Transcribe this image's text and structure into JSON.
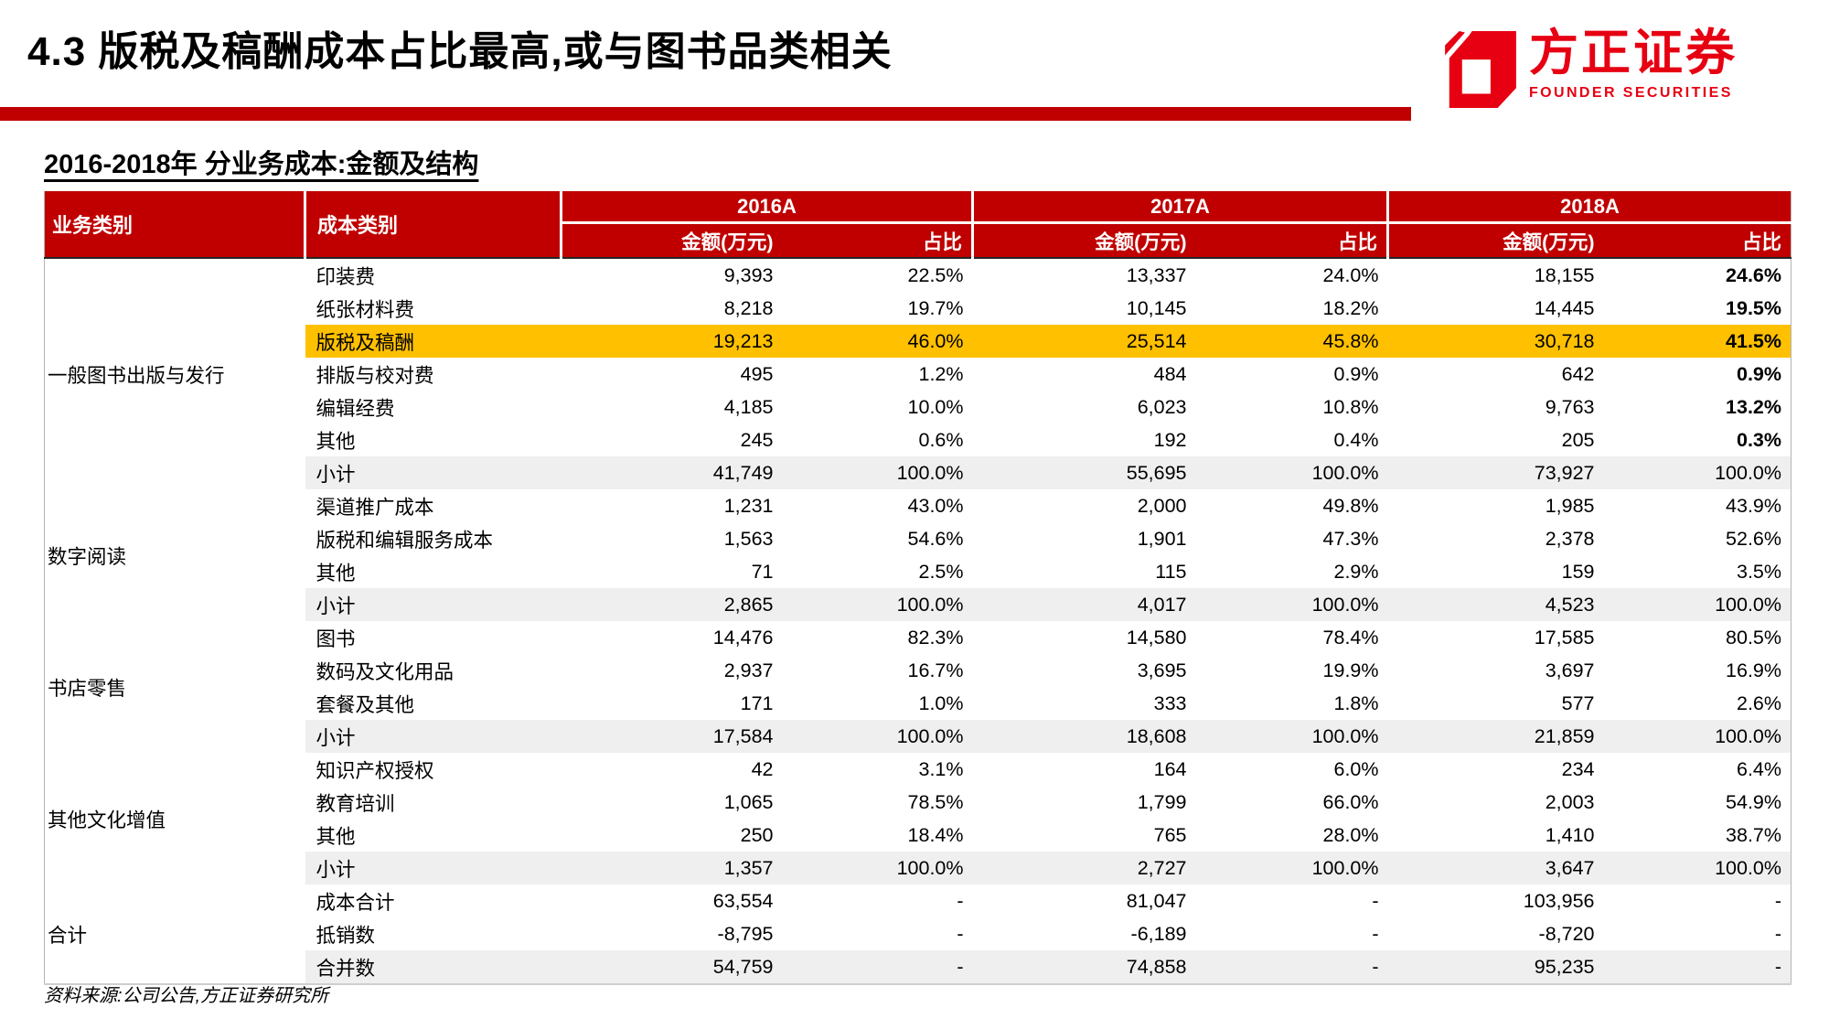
{
  "page": {
    "title": "4.3 版税及稿酬成本占比最高,或与图书品类相关",
    "subtitle": "2016-2018年 分业务成本:金额及结构",
    "source_note": "资料来源:公司公告,方正证券研究所"
  },
  "logo": {
    "name_cn": "方正证券",
    "name_en": "FOUNDER SECURITIES"
  },
  "colors": {
    "header_red": "#C00000",
    "divider_red": "#C00000",
    "logo_red": "#E60012",
    "highlight_yellow": "#FFC000",
    "subtotal_grey": "#EFEFEF"
  },
  "table": {
    "col_headers": {
      "business": "业务类别",
      "cost": "成本类别",
      "years": [
        "2016A",
        "2017A",
        "2018A"
      ],
      "amount": "金额(万元)",
      "share": "占比"
    },
    "rows": [
      {
        "group": "一般图书出版与发行",
        "span": 7,
        "cost": "印装费",
        "values": [
          "9,393",
          "22.5%",
          "13,337",
          "24.0%",
          "18,155",
          "24.6%"
        ],
        "hl": "",
        "bold_last": true
      },
      {
        "cost": "纸张材料费",
        "values": [
          "8,218",
          "19.7%",
          "10,145",
          "18.2%",
          "14,445",
          "19.5%"
        ],
        "hl": "",
        "bold_last": true
      },
      {
        "cost": "版税及稿酬",
        "values": [
          "19,213",
          "46.0%",
          "25,514",
          "45.8%",
          "30,718",
          "41.5%"
        ],
        "hl": "yellow",
        "bold_last": true
      },
      {
        "cost": "排版与校对费",
        "values": [
          "495",
          "1.2%",
          "484",
          "0.9%",
          "642",
          "0.9%"
        ],
        "hl": "",
        "bold_last": true
      },
      {
        "cost": "编辑经费",
        "values": [
          "4,185",
          "10.0%",
          "6,023",
          "10.8%",
          "9,763",
          "13.2%"
        ],
        "hl": "",
        "bold_last": true
      },
      {
        "cost": "其他",
        "values": [
          "245",
          "0.6%",
          "192",
          "0.4%",
          "205",
          "0.3%"
        ],
        "hl": "",
        "bold_last": true
      },
      {
        "cost": "小计",
        "values": [
          "41,749",
          "100.0%",
          "55,695",
          "100.0%",
          "73,927",
          "100.0%"
        ],
        "hl": "grey",
        "bold_last": false
      },
      {
        "group": "数字阅读",
        "span": 4,
        "cost": "渠道推广成本",
        "values": [
          "1,231",
          "43.0%",
          "2,000",
          "49.8%",
          "1,985",
          "43.9%"
        ],
        "hl": "",
        "bold_last": false
      },
      {
        "cost": "版税和编辑服务成本",
        "values": [
          "1,563",
          "54.6%",
          "1,901",
          "47.3%",
          "2,378",
          "52.6%"
        ],
        "hl": "",
        "bold_last": false
      },
      {
        "cost": "其他",
        "values": [
          "71",
          "2.5%",
          "115",
          "2.9%",
          "159",
          "3.5%"
        ],
        "hl": "",
        "bold_last": false
      },
      {
        "cost": "小计",
        "values": [
          "2,865",
          "100.0%",
          "4,017",
          "100.0%",
          "4,523",
          "100.0%"
        ],
        "hl": "grey",
        "bold_last": false
      },
      {
        "group": "书店零售",
        "span": 4,
        "cost": "图书",
        "values": [
          "14,476",
          "82.3%",
          "14,580",
          "78.4%",
          "17,585",
          "80.5%"
        ],
        "hl": "",
        "bold_last": false
      },
      {
        "cost": "数码及文化用品",
        "values": [
          "2,937",
          "16.7%",
          "3,695",
          "19.9%",
          "3,697",
          "16.9%"
        ],
        "hl": "",
        "bold_last": false
      },
      {
        "cost": "套餐及其他",
        "values": [
          "171",
          "1.0%",
          "333",
          "1.8%",
          "577",
          "2.6%"
        ],
        "hl": "",
        "bold_last": false
      },
      {
        "cost": "小计",
        "values": [
          "17,584",
          "100.0%",
          "18,608",
          "100.0%",
          "21,859",
          "100.0%"
        ],
        "hl": "grey",
        "bold_last": false
      },
      {
        "group": "其他文化增值",
        "span": 4,
        "cost": "知识产权授权",
        "values": [
          "42",
          "3.1%",
          "164",
          "6.0%",
          "234",
          "6.4%"
        ],
        "hl": "",
        "bold_last": false
      },
      {
        "cost": "教育培训",
        "values": [
          "1,065",
          "78.5%",
          "1,799",
          "66.0%",
          "2,003",
          "54.9%"
        ],
        "hl": "",
        "bold_last": false
      },
      {
        "cost": "其他",
        "values": [
          "250",
          "18.4%",
          "765",
          "28.0%",
          "1,410",
          "38.7%"
        ],
        "hl": "",
        "bold_last": false
      },
      {
        "cost": "小计",
        "values": [
          "1,357",
          "100.0%",
          "2,727",
          "100.0%",
          "3,647",
          "100.0%"
        ],
        "hl": "grey",
        "bold_last": false
      },
      {
        "group": "合计",
        "span": 3,
        "cost": "成本合计",
        "values": [
          "63,554",
          "-",
          "81,047",
          "-",
          "103,956",
          "-"
        ],
        "hl": "",
        "bold_last": false
      },
      {
        "cost": "抵销数",
        "values": [
          "-8,795",
          "-",
          "-6,189",
          "-",
          "-8,720",
          "-"
        ],
        "hl": "",
        "bold_last": false
      },
      {
        "cost": "合并数",
        "values": [
          "54,759",
          "-",
          "74,858",
          "-",
          "95,235",
          "-"
        ],
        "hl": "grey",
        "bold_last": false
      }
    ]
  }
}
